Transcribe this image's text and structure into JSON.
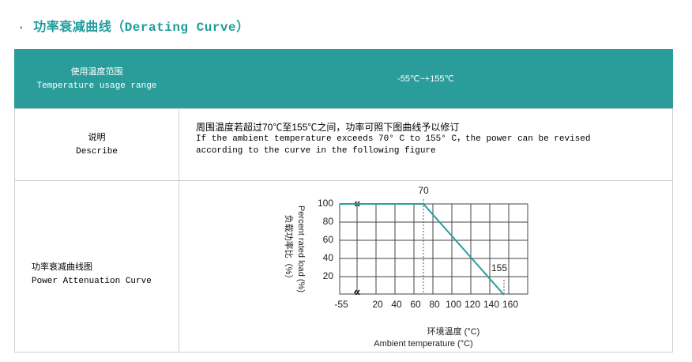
{
  "title": "·  功率衰减曲线（Derating Curve）",
  "table": {
    "rows": [
      [
        [
          "使用温度范围",
          "Temperature usage range"
        ],
        [
          "-55℃~+155℃"
        ]
      ],
      [
        [
          "说明",
          "Describe"
        ],
        [
          "周围温度若超过70℃至155℃之间，功率可照下图曲线予以修订",
          "If the ambient temperature exceeds 70° C to 155° C，the power can be revised",
          "according to the curve in the following figure"
        ]
      ],
      [
        [
          "功率衰减曲线图",
          "Power Attenuation Curve"
        ]
      ]
    ]
  },
  "chart_data": {
    "type": "line",
    "x": [
      -55,
      70,
      155
    ],
    "series": [
      {
        "color": "#2a9d9b",
        "values": [
          100,
          100,
          0
        ]
      }
    ],
    "xlim": [
      -55,
      180
    ],
    "xticks": [
      -55,
      20,
      40,
      60,
      80,
      100,
      120,
      140,
      160
    ],
    "axis_break": true,
    "ylim": [
      0,
      100
    ],
    "yticks": [
      20,
      40,
      60,
      80,
      100
    ],
    "grid": true,
    "ylabel": [
      "Percent rated load (%)",
      "负载功率比（%）"
    ],
    "xlabel": [
      "环境温度 (°C)",
      "Ambient temperature (°C)"
    ],
    "annotations": [
      {
        "text": "70",
        "x": 70,
        "y": 100
      },
      {
        "text": "155",
        "x": 155,
        "y": 0
      }
    ]
  }
}
